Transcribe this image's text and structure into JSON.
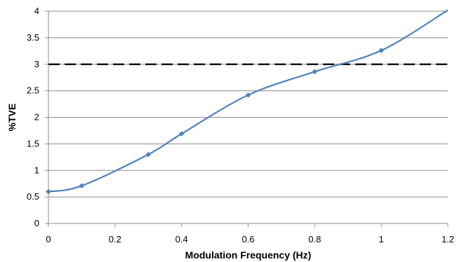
{
  "chart_data": {
    "type": "line",
    "title": "",
    "xlabel": "Modulation Frequency (Hz)",
    "ylabel": "%TVE",
    "xlim": [
      0,
      1.2
    ],
    "ylim": [
      0,
      4
    ],
    "x_ticks": [
      "0",
      "0.2",
      "0.4",
      "0.6",
      "0.8",
      "1",
      "1.2"
    ],
    "y_ticks": [
      "0",
      "0.5",
      "1",
      "1.5",
      "2",
      "2.5",
      "3",
      "3.5",
      "4"
    ],
    "grid": "horizontal",
    "legend": "none",
    "series": [
      {
        "color": "#4f81bd",
        "marker": "diamond",
        "x": [
          0,
          0.1,
          0.3,
          0.4,
          0.6,
          0.8,
          1.0,
          1.2
        ],
        "y": [
          0.6,
          0.71,
          1.3,
          1.69,
          2.42,
          2.86,
          3.26,
          4.02
        ]
      }
    ],
    "reference_line": {
      "y": 3,
      "color": "#000000",
      "style": "dashed"
    }
  }
}
